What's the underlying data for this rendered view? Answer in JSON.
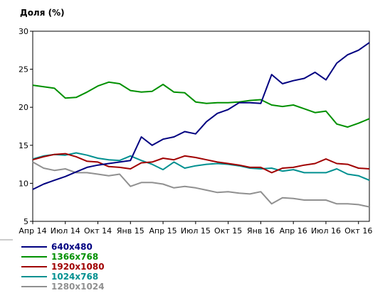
{
  "chart_data": {
    "type": "line",
    "title": "",
    "ylabel": "Доля (%)",
    "xlabel": "",
    "ylim": [
      5,
      30
    ],
    "yticks": [
      5,
      10,
      15,
      20,
      25,
      30
    ],
    "grid": false,
    "legend_position": "bottom-left",
    "x_tick_labels": [
      "Апр 14",
      "Июл 14",
      "Окт 14",
      "Янв 15",
      "Апр 15",
      "Июл 15",
      "Окт 15",
      "Янв 16",
      "Апр 16",
      "Июл 16",
      "Окт 16"
    ],
    "x_tick_indices": [
      0,
      3,
      6,
      9,
      12,
      15,
      18,
      21,
      24,
      27,
      30
    ],
    "series": [
      {
        "name": "640x480",
        "color": "#000080",
        "values": [
          9.2,
          9.9,
          10.4,
          10.9,
          11.5,
          12.1,
          12.4,
          12.6,
          12.8,
          13.0,
          16.1,
          15.0,
          15.8,
          16.1,
          16.8,
          16.5,
          18.1,
          19.2,
          19.7,
          20.6,
          20.6,
          20.5,
          24.3,
          23.1,
          23.5,
          23.8,
          24.6,
          23.6,
          25.8,
          26.9,
          27.5,
          28.5
        ]
      },
      {
        "name": "1366x768",
        "color": "#009000",
        "values": [
          22.9,
          22.7,
          22.5,
          21.2,
          21.3,
          22.0,
          22.8,
          23.3,
          23.1,
          22.2,
          22.0,
          22.1,
          23.0,
          22.0,
          21.9,
          20.7,
          20.5,
          20.6,
          20.6,
          20.7,
          20.9,
          21.0,
          20.3,
          20.1,
          20.3,
          19.8,
          19.3,
          19.5,
          17.8,
          17.4,
          17.9,
          18.5
        ]
      },
      {
        "name": "1920x1080",
        "color": "#a00000",
        "values": [
          13.1,
          13.5,
          13.8,
          13.9,
          13.5,
          12.9,
          12.8,
          12.2,
          12.1,
          11.9,
          12.7,
          12.8,
          13.3,
          13.1,
          13.6,
          13.4,
          13.1,
          12.8,
          12.6,
          12.4,
          12.1,
          12.1,
          11.4,
          12.0,
          12.1,
          12.4,
          12.6,
          13.2,
          12.6,
          12.5,
          12.0,
          11.9
        ]
      },
      {
        "name": "1024x768",
        "color": "#009090",
        "values": [
          13.2,
          13.6,
          13.8,
          13.7,
          14.0,
          13.7,
          13.3,
          13.1,
          13.0,
          13.6,
          13.0,
          12.5,
          11.8,
          12.8,
          12.0,
          12.3,
          12.5,
          12.6,
          12.5,
          12.3,
          12.0,
          11.9,
          12.0,
          11.6,
          11.8,
          11.4,
          11.4,
          11.4,
          11.9,
          11.2,
          11.0,
          10.4
        ]
      },
      {
        "name": "1280x1024",
        "color": "#909090",
        "values": [
          12.8,
          12.0,
          11.7,
          11.9,
          11.4,
          11.4,
          11.2,
          11.0,
          11.2,
          9.6,
          10.1,
          10.1,
          9.9,
          9.4,
          9.6,
          9.4,
          9.1,
          8.8,
          8.9,
          8.7,
          8.6,
          8.9,
          7.3,
          8.1,
          8.0,
          7.8,
          7.8,
          7.8,
          7.3,
          7.3,
          7.2,
          6.9
        ]
      }
    ]
  }
}
